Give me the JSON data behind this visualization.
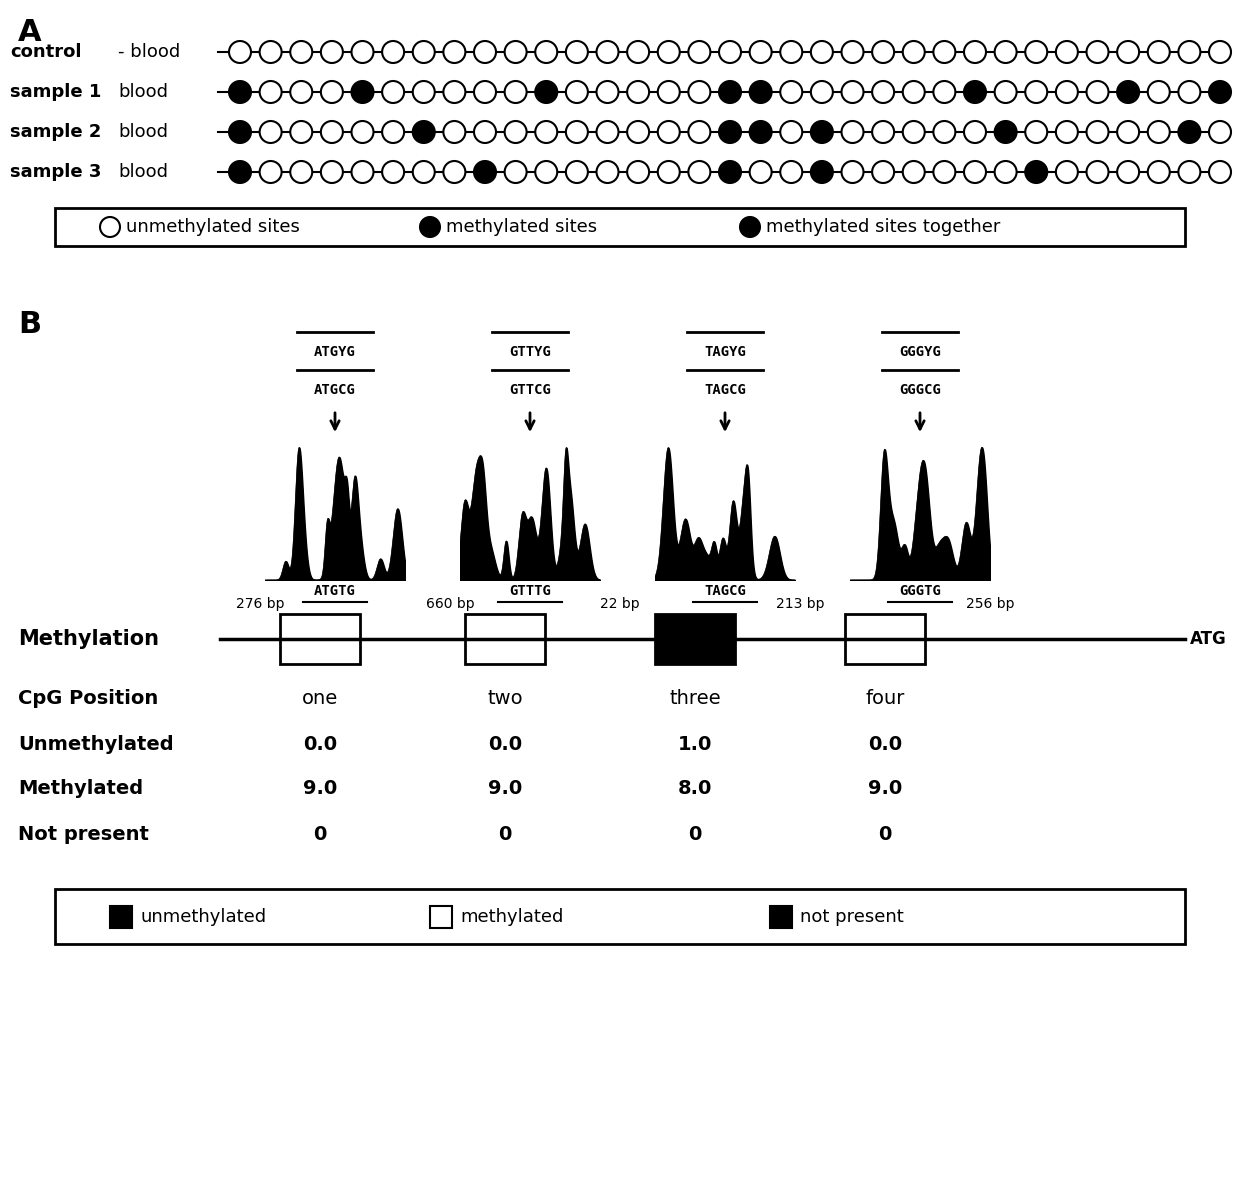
{
  "panel_A_label": "A",
  "panel_B_label": "B",
  "row_labels": [
    "control",
    "sample 1",
    "sample 2",
    "sample 3"
  ],
  "row_sublabels": [
    "- blood",
    "blood",
    "blood",
    "blood"
  ],
  "n_circles": 33,
  "circle_patterns": [
    [
      0,
      0,
      0,
      0,
      0,
      0,
      0,
      0,
      0,
      0,
      0,
      0,
      0,
      0,
      0,
      0,
      0,
      0,
      0,
      0,
      0,
      0,
      0,
      0,
      0,
      0,
      0,
      0,
      0,
      0,
      0,
      0,
      0
    ],
    [
      1,
      0,
      0,
      0,
      1,
      0,
      0,
      0,
      0,
      0,
      1,
      0,
      0,
      0,
      0,
      0,
      1,
      1,
      0,
      0,
      0,
      0,
      0,
      0,
      1,
      0,
      0,
      0,
      0,
      1,
      0,
      0,
      1
    ],
    [
      1,
      0,
      0,
      0,
      0,
      0,
      1,
      0,
      0,
      0,
      0,
      0,
      0,
      0,
      0,
      0,
      1,
      1,
      0,
      1,
      0,
      0,
      0,
      0,
      0,
      1,
      0,
      0,
      0,
      0,
      0,
      1,
      0
    ],
    [
      1,
      0,
      0,
      0,
      0,
      0,
      0,
      0,
      1,
      0,
      0,
      0,
      0,
      0,
      0,
      0,
      1,
      0,
      0,
      1,
      0,
      0,
      0,
      0,
      0,
      0,
      1,
      0,
      0,
      0,
      0,
      0,
      0
    ]
  ],
  "legend_A_items": [
    "unmethylated sites",
    "methylated sites",
    "methylated sites together"
  ],
  "legend_A_fill": [
    "white",
    "black",
    "black"
  ],
  "cpg_positions": [
    "one",
    "two",
    "three",
    "four"
  ],
  "bp_labels": [
    "276 bp",
    "660 bp",
    "22 bp",
    "213 bp",
    "256 bp"
  ],
  "atg_label": "ATG",
  "box_fills": [
    "white",
    "white",
    "black",
    "white"
  ],
  "seq_top_line1": [
    "ATGYG",
    "GTTYG",
    "TAGYG",
    "GGGYG"
  ],
  "seq_top_line2": [
    "ATGCG",
    "GTTCG",
    "TAGCG",
    "GGGCG"
  ],
  "seq_bottom": [
    "ATGTG",
    "GTTTG",
    "TAGCG",
    "GGGTG"
  ],
  "methylation_label": "Methylation",
  "cpg_pos_label": "CpG Position",
  "unmethylated_label": "Unmethylated",
  "methylated_label": "Methylated",
  "not_present_label": "Not present",
  "unmethylated_values": [
    "0.0",
    "0.0",
    "1.0",
    "0.0"
  ],
  "methylated_values": [
    "9.0",
    "9.0",
    "8.0",
    "9.0"
  ],
  "not_present_values": [
    "0",
    "0",
    "0",
    "0"
  ],
  "legend_B_items": [
    "unmethylated",
    "methylated",
    "not present"
  ],
  "legend_B_fills": [
    "black",
    "white",
    "black"
  ],
  "legend_B_edges": [
    "black",
    "black",
    "black"
  ]
}
